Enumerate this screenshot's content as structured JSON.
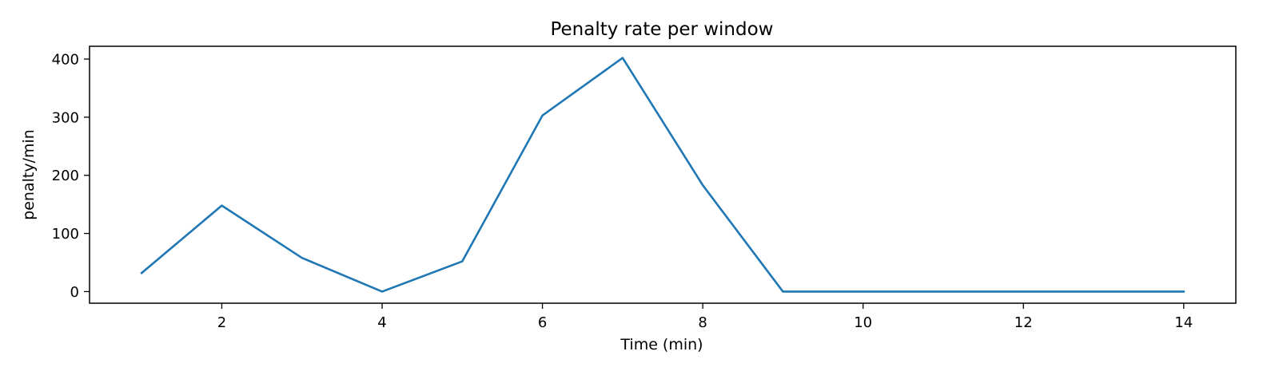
{
  "chart_data": {
    "type": "line",
    "title": "Penalty rate per window",
    "xlabel": "Time (min)",
    "ylabel": "penalty/min",
    "xlim": [
      0.35,
      14.65
    ],
    "ylim": [
      -20,
      422
    ],
    "xticks": [
      2,
      4,
      6,
      8,
      10,
      12,
      14
    ],
    "yticks": [
      0,
      100,
      200,
      300,
      400
    ],
    "grid": false,
    "legend": null,
    "series": [
      {
        "color": "#1f77b4",
        "x": [
          1,
          2,
          3,
          4,
          5,
          6,
          7,
          8,
          9,
          10,
          11,
          12,
          13,
          14
        ],
        "y": [
          32,
          148,
          58,
          0,
          52,
          303,
          402,
          183,
          0,
          0,
          0,
          0,
          0,
          0
        ]
      }
    ]
  }
}
